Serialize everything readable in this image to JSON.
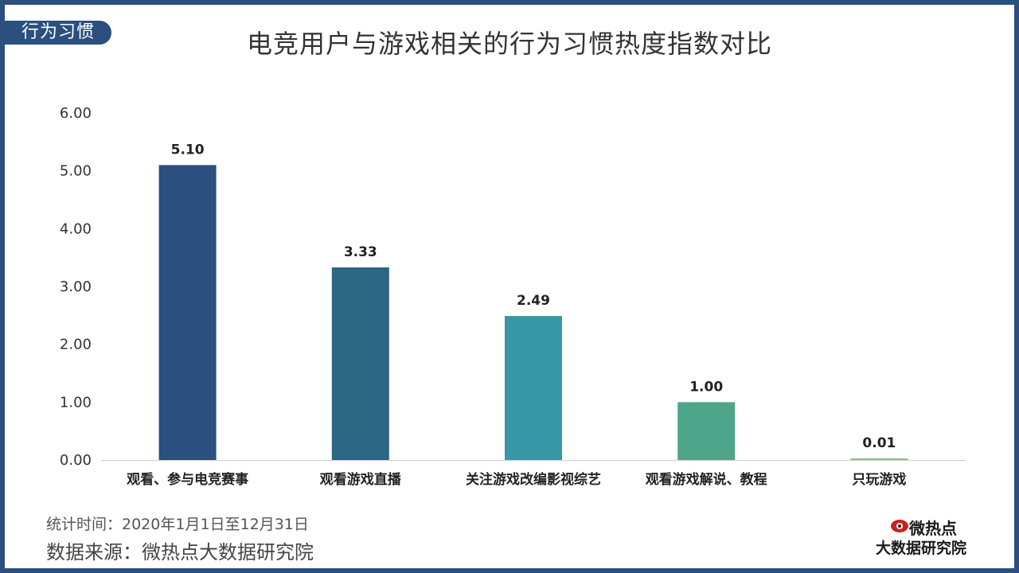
{
  "section_tag": "行为习惯",
  "chart_data": {
    "type": "bar",
    "title": "电竞用户与游戏相关的行为习惯热度指数对比",
    "categories": [
      "观看、参与电竞赛事",
      "观看游戏直播",
      "关注游戏改编影视综艺",
      "观看游戏解说、教程",
      "只玩游戏"
    ],
    "values": [
      5.1,
      3.33,
      2.49,
      1.0,
      0.01
    ],
    "value_labels": [
      "5.10",
      "3.33",
      "2.49",
      "1.00",
      "0.01"
    ],
    "y_ticks": [
      "0.00",
      "1.00",
      "2.00",
      "3.00",
      "4.00",
      "5.00",
      "6.00"
    ],
    "ylim": [
      0,
      6
    ],
    "xlabel": "",
    "ylabel": "",
    "grid": false,
    "bar_colors": [
      "#2b4f7e",
      "#2b6683",
      "#3898a6",
      "#4ea68a",
      "#7cc48e"
    ]
  },
  "footer": {
    "stat_time": "统计时间：2020年1月1日至12月31日",
    "source": "数据来源：微热点大数据研究院"
  },
  "logo": {
    "line1": "微热点",
    "line2": "大数据研究院"
  }
}
